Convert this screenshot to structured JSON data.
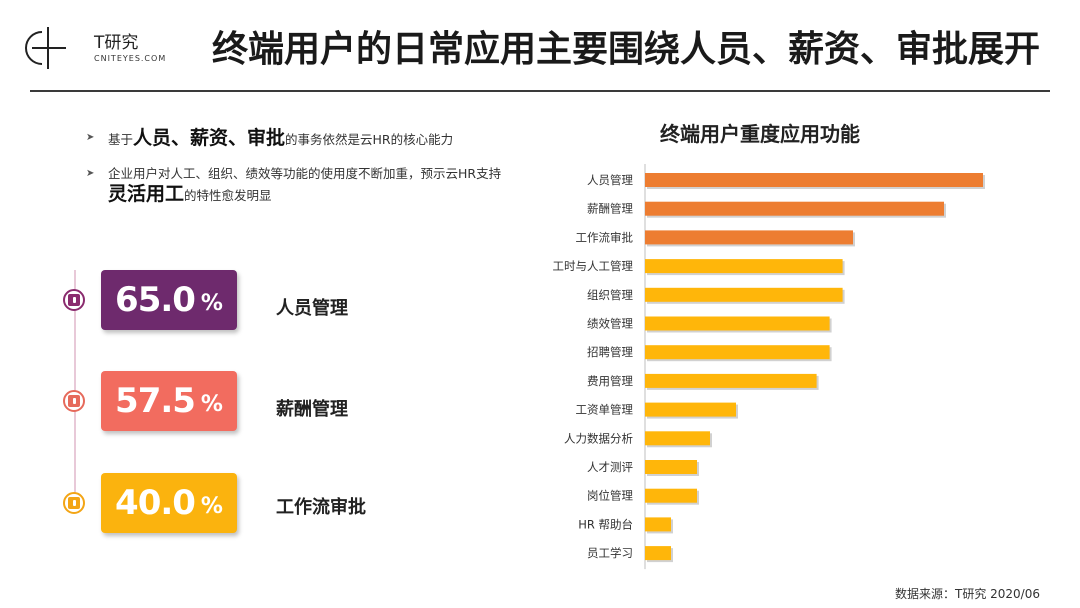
{
  "logo": {
    "name_cn": "T研究",
    "name_en": "CNITEYES.COM"
  },
  "title": "终端用户的日常应用主要围绕人员、薪资、审批展开",
  "bullets": [
    {
      "prefix": "基于",
      "highlight": "人员、薪资、审批",
      "suffix": "的事务依然是云HR的核心能力"
    },
    {
      "line1": "企业用户对人工、组织、绩效等功能的使用度不断加重，预示云HR支持",
      "highlight": "灵活用工",
      "suffix": "的特性愈发明显"
    }
  ],
  "kpis": [
    {
      "value": "65.0",
      "unit": "%",
      "label": "人员管理",
      "color": "#6e2a6d",
      "lock_color": "#8a2b6e"
    },
    {
      "value": "57.5",
      "unit": "%",
      "label": "薪酬管理",
      "color": "#f26c5f",
      "lock_color": "#e66a5b"
    },
    {
      "value": "40.0",
      "unit": "%",
      "label": "工作流审批",
      "color": "#fbb30e",
      "lock_color": "#f3a516"
    }
  ],
  "colors": {
    "orange_bar": "#ed7d31",
    "yellow_bar": "#ffb60a"
  },
  "chart_data": {
    "type": "bar",
    "orientation": "horizontal",
    "title": "终端用户重度应用功能",
    "categories": [
      "人员管理",
      "薪酬管理",
      "工作流审批",
      "工时与人工管理",
      "组织管理",
      "绩效管理",
      "招聘管理",
      "费用管理",
      "工资单管理",
      "人力数据分析",
      "人才测评",
      "岗位管理",
      "HR 帮助台",
      "员工学习"
    ],
    "values": [
      65.0,
      57.5,
      40.0,
      38.0,
      38.0,
      35.5,
      35.5,
      33.0,
      17.5,
      12.5,
      10.0,
      10.0,
      5.0,
      5.0
    ],
    "bar_colors": [
      "#ed7d31",
      "#ed7d31",
      "#ed7d31",
      "#ffb60a",
      "#ffb60a",
      "#ffb60a",
      "#ffb60a",
      "#ffb60a",
      "#ffb60a",
      "#ffb60a",
      "#ffb60a",
      "#ffb60a",
      "#ffb60a",
      "#ffb60a"
    ],
    "xlim": [
      0,
      65
    ]
  },
  "source": "数据来源：T研究 2020/06"
}
